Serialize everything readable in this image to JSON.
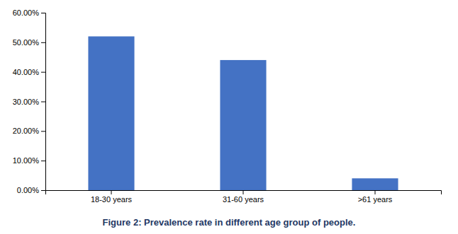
{
  "chart_data": {
    "type": "bar",
    "title": "Figure 2: Prevalence rate in different age group of people.",
    "categories": [
      "18-30 years",
      "31-60 years",
      ">61 years"
    ],
    "values": [
      0.52,
      0.44,
      0.04
    ],
    "color": "#4472C4",
    "ylim": [
      0,
      0.6
    ],
    "yticks": [
      {
        "value": 0.0,
        "label": "0.00%"
      },
      {
        "value": 0.1,
        "label": "10.00%"
      },
      {
        "value": 0.2,
        "label": "20.00%"
      },
      {
        "value": 0.3,
        "label": "30.00%"
      },
      {
        "value": 0.4,
        "label": "40.00%"
      },
      {
        "value": 0.5,
        "label": "50.00%"
      },
      {
        "value": 0.6,
        "label": "60.00%"
      }
    ],
    "grid": false
  }
}
